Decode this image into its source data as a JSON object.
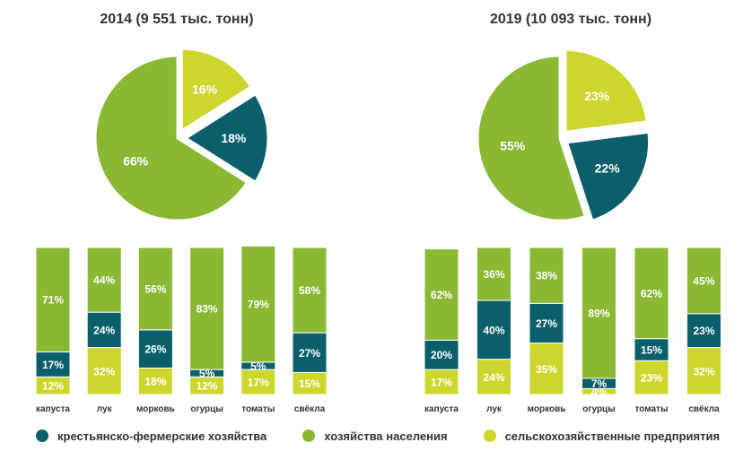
{
  "colors": {
    "farm": "#0b5f6b",
    "household": "#8ab833",
    "enterprise": "#cdd62c",
    "text_on_dark": "#ffffff"
  },
  "legend": [
    {
      "key": "farm",
      "label": "крестьянско-фермерские хозяйства"
    },
    {
      "key": "household",
      "label": "хозяйства населения"
    },
    {
      "key": "enterprise",
      "label": "сельскохозяйственные предприятия"
    }
  ],
  "chart_data": [
    {
      "type": "pie",
      "title": "2014 (9 551 тыс. тонн)",
      "slices": [
        {
          "key": "enterprise",
          "value": 16,
          "label": "16%"
        },
        {
          "key": "farm",
          "value": 18,
          "label": "18%"
        },
        {
          "key": "household",
          "value": 66,
          "label": "66%"
        }
      ]
    },
    {
      "type": "pie",
      "title": "2019 (10 093 тыс. тонн)",
      "slices": [
        {
          "key": "enterprise",
          "value": 23,
          "label": "23%"
        },
        {
          "key": "farm",
          "value": 22,
          "label": "22%"
        },
        {
          "key": "household",
          "value": 55,
          "label": "55%"
        }
      ]
    },
    {
      "type": "bar",
      "stacked": true,
      "unit": "%",
      "categories": [
        "капуста",
        "лук",
        "морковь",
        "огурцы",
        "томаты",
        "свёкла"
      ],
      "series": [
        {
          "key": "enterprise",
          "name": "сельскохозяйственные предприятия",
          "values": [
            12,
            32,
            18,
            12,
            17,
            15
          ]
        },
        {
          "key": "farm",
          "name": "крестьянско-фермерские хозяйства",
          "values": [
            17,
            24,
            26,
            5,
            5,
            27
          ]
        },
        {
          "key": "household",
          "name": "хозяйства населения",
          "values": [
            71,
            44,
            56,
            83,
            79,
            58
          ]
        }
      ]
    },
    {
      "type": "bar",
      "stacked": true,
      "unit": "%",
      "categories": [
        "капуста",
        "лук",
        "морковь",
        "огурцы",
        "томаты",
        "свёкла"
      ],
      "series": [
        {
          "key": "enterprise",
          "name": "сельскохозяйственные предприятия",
          "values": [
            17,
            24,
            35,
            4,
            23,
            32
          ]
        },
        {
          "key": "farm",
          "name": "крестьянско-фермерские хозяйства",
          "values": [
            20,
            40,
            27,
            7,
            15,
            23
          ]
        },
        {
          "key": "household",
          "name": "хозяйства населения",
          "values": [
            62,
            36,
            38,
            89,
            62,
            45
          ]
        }
      ]
    }
  ]
}
